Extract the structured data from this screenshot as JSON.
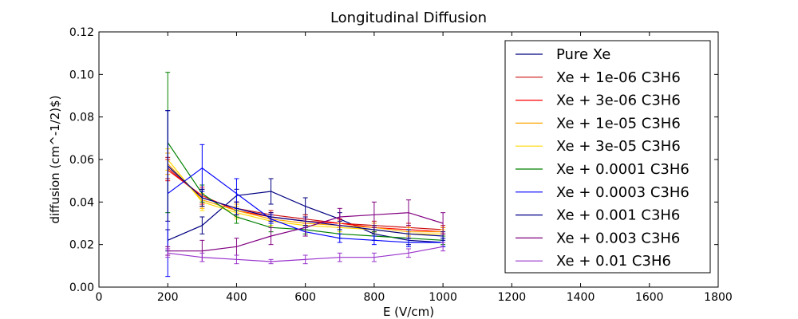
{
  "chart_data": {
    "type": "line",
    "title": "Longitudinal Diffusion",
    "xlabel": "E (V/cm)",
    "ylabel": "diffusion (cm^-1/2)$)",
    "xlim": [
      0,
      1800
    ],
    "ylim": [
      0,
      0.12
    ],
    "x_ticks": [
      0,
      200,
      400,
      600,
      800,
      1000,
      1200,
      1400,
      1600,
      1800
    ],
    "y_ticks": [
      0.0,
      0.02,
      0.04,
      0.06,
      0.08,
      0.1,
      0.12
    ],
    "x_tick_labels": [
      "0",
      "200",
      "400",
      "600",
      "800",
      "1000",
      "1200",
      "1400",
      "1600",
      "1800"
    ],
    "y_tick_labels": [
      "0.00",
      "0.02",
      "0.04",
      "0.06",
      "0.08",
      "0.10",
      "0.12"
    ],
    "grid": false,
    "legend_position": "top-right",
    "x": [
      200,
      300,
      400,
      500,
      600,
      700,
      800,
      900,
      1000
    ],
    "series": [
      {
        "name": "Pure Xe",
        "color": "#000080",
        "values": [
          0.022,
          0.029,
          0.043,
          0.045,
          0.038,
          0.032,
          0.025,
          0.022,
          0.021
        ],
        "errors": [
          0.005,
          0.004,
          0.003,
          0.006,
          0.004,
          0.003,
          0.003,
          0.002,
          0.002
        ]
      },
      {
        "name": "Xe + 1e-06 C3H6",
        "color": "#cc1010",
        "values": [
          0.056,
          0.042,
          0.037,
          0.034,
          0.032,
          0.03,
          0.029,
          0.028,
          0.027
        ],
        "errors": [
          0.005,
          0.004,
          0.003,
          0.002,
          0.002,
          0.002,
          0.002,
          0.002,
          0.002
        ]
      },
      {
        "name": "Xe + 3e-06 C3H6",
        "color": "#ff0000",
        "values": [
          0.055,
          0.043,
          0.036,
          0.033,
          0.031,
          0.03,
          0.028,
          0.027,
          0.026
        ],
        "errors": [
          0.005,
          0.004,
          0.003,
          0.002,
          0.002,
          0.002,
          0.002,
          0.002,
          0.002
        ]
      },
      {
        "name": "Xe + 1e-05 C3H6",
        "color": "#ffa500",
        "values": [
          0.058,
          0.041,
          0.036,
          0.032,
          0.03,
          0.029,
          0.028,
          0.026,
          0.026
        ],
        "errors": [
          0.005,
          0.004,
          0.003,
          0.002,
          0.002,
          0.002,
          0.002,
          0.002,
          0.002
        ]
      },
      {
        "name": "Xe + 3e-05 C3H6",
        "color": "#ffd700",
        "values": [
          0.06,
          0.04,
          0.035,
          0.031,
          0.029,
          0.028,
          0.027,
          0.025,
          0.025
        ],
        "errors": [
          0.005,
          0.004,
          0.003,
          0.002,
          0.002,
          0.002,
          0.002,
          0.002,
          0.002
        ]
      },
      {
        "name": "Xe + 0.0001 C3H6",
        "color": "#008000",
        "values": [
          0.068,
          0.044,
          0.033,
          0.028,
          0.027,
          0.025,
          0.024,
          0.023,
          0.022
        ],
        "errors": [
          0.033,
          0.004,
          0.003,
          0.002,
          0.002,
          0.002,
          0.002,
          0.002,
          0.002
        ]
      },
      {
        "name": "Xe + 0.0003 C3H6",
        "color": "#0000ff",
        "values": [
          0.044,
          0.056,
          0.044,
          0.032,
          0.026,
          0.023,
          0.022,
          0.021,
          0.021
        ],
        "errors": [
          0.039,
          0.011,
          0.007,
          0.002,
          0.002,
          0.002,
          0.002,
          0.002,
          0.002
        ]
      },
      {
        "name": "Xe + 0.001 C3H6",
        "color": "#00008b",
        "values": [
          0.057,
          0.042,
          0.037,
          0.033,
          0.031,
          0.029,
          0.027,
          0.025,
          0.024
        ],
        "errors": [
          0.026,
          0.004,
          0.003,
          0.002,
          0.002,
          0.002,
          0.002,
          0.002,
          0.002
        ]
      },
      {
        "name": "Xe + 0.003 C3H6",
        "color": "#800080",
        "values": [
          0.017,
          0.017,
          0.019,
          0.024,
          0.028,
          0.033,
          0.034,
          0.035,
          0.03
        ],
        "errors": [
          0.002,
          0.005,
          0.004,
          0.004,
          0.004,
          0.004,
          0.006,
          0.006,
          0.005
        ]
      },
      {
        "name": "Xe + 0.01 C3H6",
        "color": "#9932cc",
        "values": [
          0.016,
          0.014,
          0.013,
          0.012,
          0.013,
          0.014,
          0.014,
          0.016,
          0.019
        ],
        "errors": [
          0.002,
          0.002,
          0.002,
          0.001,
          0.002,
          0.002,
          0.002,
          0.002,
          0.002
        ]
      }
    ]
  }
}
